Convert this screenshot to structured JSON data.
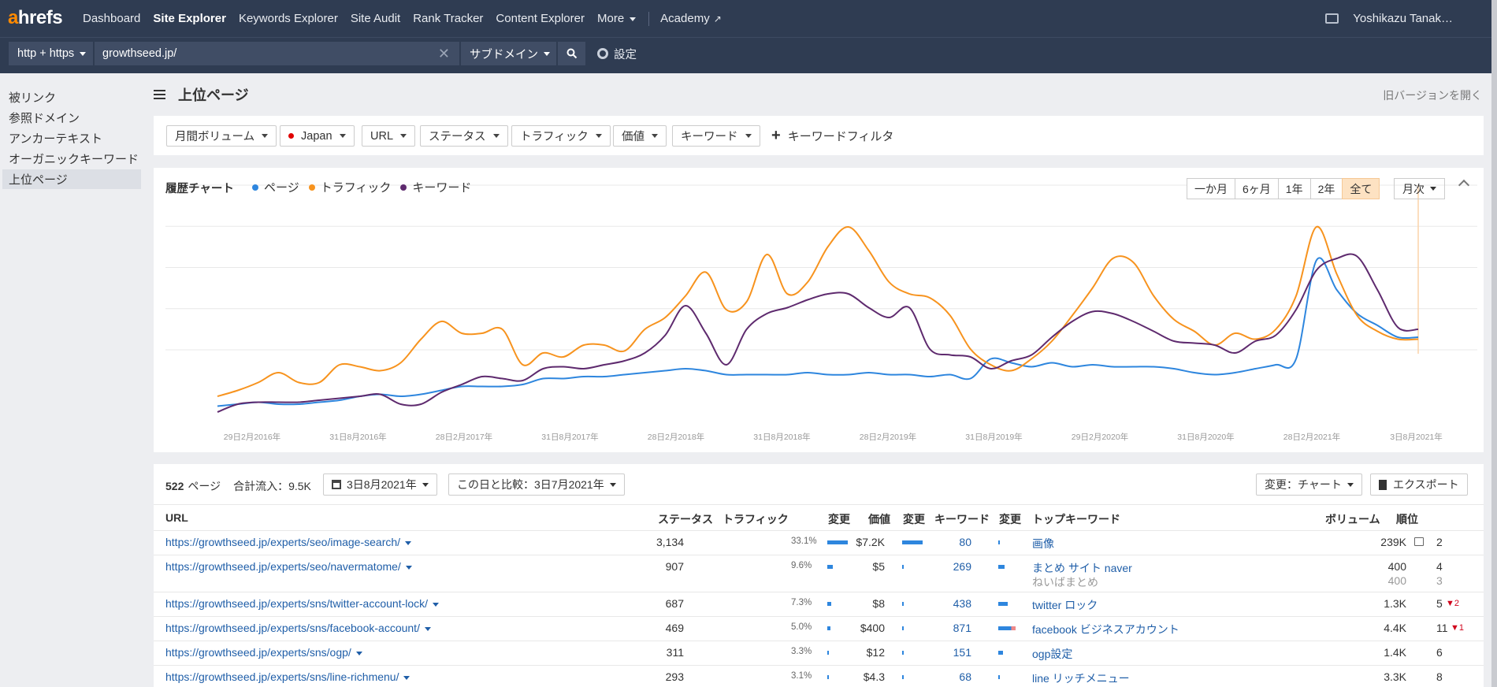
{
  "brand": {
    "logo_a": "a",
    "logo_rest": "hrefs"
  },
  "nav": {
    "items": [
      "Dashboard",
      "Site Explorer",
      "Keywords Explorer",
      "Site Audit",
      "Rank Tracker",
      "Content Explorer",
      "More"
    ],
    "academy": "Academy",
    "user": "Yoshikazu Tanak…"
  },
  "search": {
    "protocol": "http + https",
    "url": "growthseed.jp/",
    "mode": "サブドメイン",
    "settings": "設定"
  },
  "sidebar": {
    "items": [
      "被リンク",
      "参照ドメイン",
      "アンカーテキスト",
      "オーガニックキーワード",
      "上位ページ"
    ]
  },
  "page": {
    "title": "上位ページ",
    "old_version": "旧バージョンを開く"
  },
  "filters": {
    "volume": "月間ボリューム",
    "country": "Japan",
    "url": "URL",
    "status": "ステータス",
    "traffic": "トラフィック",
    "value": "価値",
    "keyword": "キーワード",
    "keyword_filter": "キーワードフィルタ"
  },
  "chart_panel": {
    "title": "履歴チャート",
    "ranges": [
      "一か月",
      "6ヶ月",
      "1年",
      "2年",
      "全て"
    ],
    "active_range": "全て",
    "interval": "月次"
  },
  "colors": {
    "pages": "#2e86de",
    "traffic": "#f7931e",
    "keywords": "#5e2a6e",
    "nav_bg": "#2f3c52",
    "link": "#1f5ea8"
  },
  "chart_data": {
    "type": "line",
    "title": "",
    "xlabel": "",
    "ylabel": "",
    "x_ticks": [
      "29日2月2016年",
      "31日8月2016年",
      "28日2月2017年",
      "31日8月2017年",
      "28日2月2018年",
      "31日8月2018年",
      "28日2月2019年",
      "31日8月2019年",
      "29日2月2020年",
      "31日8月2020年",
      "28日2月2021年",
      "3日8月2021年"
    ],
    "grid": true,
    "legend": "top-left",
    "series": [
      {
        "name": "ページ",
        "color": "#2e86de",
        "values": [
          0.09,
          0.1,
          0.11,
          0.1,
          0.1,
          0.11,
          0.12,
          0.14,
          0.15,
          0.14,
          0.15,
          0.17,
          0.19,
          0.19,
          0.19,
          0.2,
          0.23,
          0.23,
          0.24,
          0.24,
          0.25,
          0.26,
          0.27,
          0.28,
          0.27,
          0.25,
          0.25,
          0.25,
          0.25,
          0.26,
          0.25,
          0.25,
          0.26,
          0.25,
          0.25,
          0.24,
          0.25,
          0.23,
          0.33,
          0.31,
          0.29,
          0.31,
          0.29,
          0.3,
          0.29,
          0.29,
          0.29,
          0.28,
          0.26,
          0.25,
          0.26,
          0.28,
          0.3,
          0.33,
          0.83,
          0.68,
          0.56,
          0.5,
          0.44,
          0.44
        ]
      },
      {
        "name": "トラフィック",
        "color": "#f7931e",
        "values": [
          0.14,
          0.17,
          0.21,
          0.26,
          0.21,
          0.21,
          0.3,
          0.29,
          0.27,
          0.31,
          0.43,
          0.52,
          0.46,
          0.46,
          0.48,
          0.3,
          0.36,
          0.34,
          0.4,
          0.4,
          0.37,
          0.48,
          0.54,
          0.65,
          0.77,
          0.58,
          0.62,
          0.86,
          0.66,
          0.72,
          0.9,
          1.0,
          0.88,
          0.72,
          0.66,
          0.64,
          0.55,
          0.38,
          0.3,
          0.27,
          0.33,
          0.42,
          0.55,
          0.69,
          0.84,
          0.82,
          0.65,
          0.53,
          0.47,
          0.4,
          0.46,
          0.43,
          0.48,
          0.65,
          1.0,
          0.76,
          0.55,
          0.47,
          0.43,
          0.43
        ]
      },
      {
        "name": "キーワード",
        "color": "#5e2a6e",
        "values": [
          0.06,
          0.1,
          0.11,
          0.11,
          0.11,
          0.12,
          0.13,
          0.14,
          0.15,
          0.1,
          0.1,
          0.16,
          0.2,
          0.24,
          0.23,
          0.22,
          0.28,
          0.29,
          0.28,
          0.3,
          0.32,
          0.36,
          0.45,
          0.6,
          0.46,
          0.3,
          0.48,
          0.56,
          0.59,
          0.63,
          0.66,
          0.66,
          0.59,
          0.54,
          0.59,
          0.38,
          0.35,
          0.34,
          0.28,
          0.32,
          0.35,
          0.44,
          0.52,
          0.57,
          0.56,
          0.52,
          0.47,
          0.42,
          0.41,
          0.4,
          0.36,
          0.42,
          0.45,
          0.58,
          0.78,
          0.84,
          0.85,
          0.68,
          0.49,
          0.48
        ]
      }
    ]
  },
  "table": {
    "summary_count": "522",
    "summary_unit": "ページ",
    "total_traffic": "合計流入：9.5K",
    "date": "3日8月2021年",
    "compare": "この日と比較：3日7月2021年",
    "change_mode": "変更：チャート",
    "export": "エクスポート",
    "headers": {
      "url": "URL",
      "status": "ステータス",
      "traffic": "トラフィック",
      "change1": "変更",
      "value": "価値",
      "change2": "変更",
      "keywords": "キーワード",
      "change3": "変更",
      "top_keyword": "トップキーワード",
      "volume": "ボリューム",
      "rank": "順位"
    },
    "rows": [
      {
        "url": "https://growthseed.jp/experts/seo/image-search/",
        "traffic": "3,134",
        "pct": "33.1%",
        "value": "$7.2K",
        "keywords": "80",
        "top": "画像",
        "top2": "",
        "volume": "239K",
        "volume2": "",
        "rank": "2",
        "rank2": "",
        "delta": ""
      },
      {
        "url": "https://growthseed.jp/experts/seo/navermatome/",
        "traffic": "907",
        "pct": "9.6%",
        "value": "$5",
        "keywords": "269",
        "top": "まとめ サイト naver",
        "top2": "ねいばまとめ",
        "volume": "400",
        "volume2": "400",
        "rank": "4",
        "rank2": "3",
        "delta": ""
      },
      {
        "url": "https://growthseed.jp/experts/sns/twitter-account-lock/",
        "traffic": "687",
        "pct": "7.3%",
        "value": "$8",
        "keywords": "438",
        "top": "twitter ロック",
        "top2": "",
        "volume": "1.3K",
        "volume2": "",
        "rank": "5",
        "rank2": "",
        "delta": "2"
      },
      {
        "url": "https://growthseed.jp/experts/sns/facebook-account/",
        "traffic": "469",
        "pct": "5.0%",
        "value": "$400",
        "keywords": "871",
        "top": "facebook ビジネスアカウント",
        "top2": "",
        "volume": "4.4K",
        "volume2": "",
        "rank": "11",
        "rank2": "",
        "delta": "1"
      },
      {
        "url": "https://growthseed.jp/experts/sns/ogp/",
        "traffic": "311",
        "pct": "3.3%",
        "value": "$12",
        "keywords": "151",
        "top": "ogp設定",
        "top2": "",
        "volume": "1.4K",
        "volume2": "",
        "rank": "6",
        "rank2": "",
        "delta": ""
      },
      {
        "url": "https://growthseed.jp/experts/sns/line-richmenu/",
        "traffic": "293",
        "pct": "3.1%",
        "value": "$4.3",
        "keywords": "68",
        "top": "line リッチメニュー",
        "top2": "",
        "volume": "3.3K",
        "volume2": "",
        "rank": "8",
        "rank2": "",
        "delta": ""
      }
    ]
  }
}
